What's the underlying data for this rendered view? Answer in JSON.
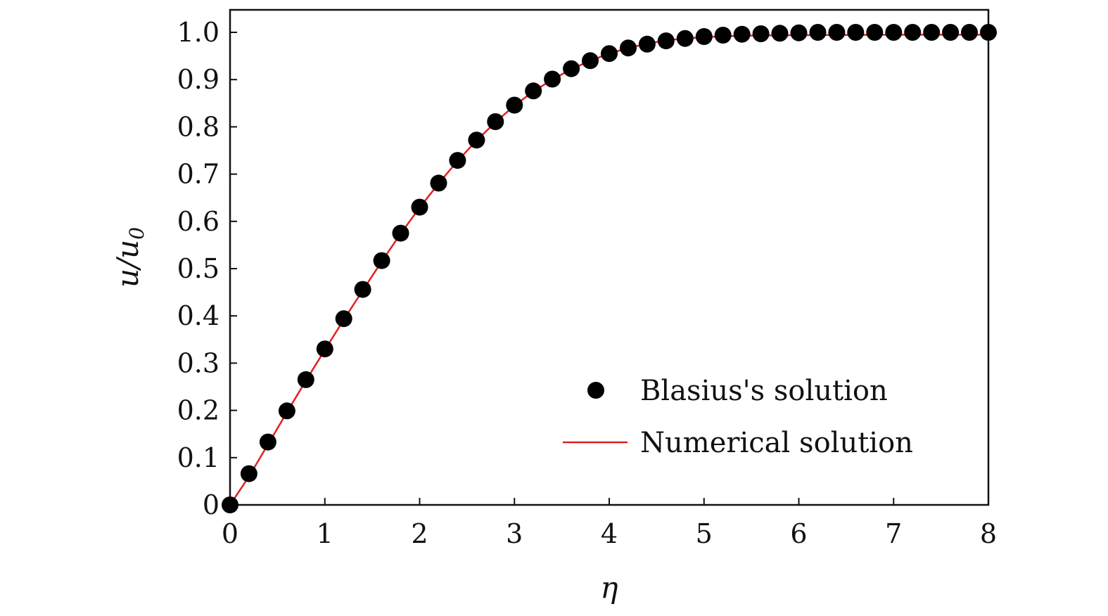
{
  "chart_data": {
    "type": "scatter",
    "xlabel": "η",
    "ylabel_main": "u/u",
    "ylabel_sub": "0",
    "xlim": [
      0,
      8
    ],
    "ylim": [
      0,
      1.0
    ],
    "x_ticks": [
      "0",
      "1",
      "2",
      "3",
      "4",
      "5",
      "6",
      "7",
      "8"
    ],
    "y_ticks": [
      "0",
      "0.1",
      "0.2",
      "0.3",
      "0.4",
      "0.5",
      "0.6",
      "0.7",
      "0.8",
      "0.9",
      "1.0"
    ],
    "grid": false,
    "legend_placement": "bottom-right",
    "series": [
      {
        "name": "Blasius's solution",
        "style": "markers",
        "color": "#000000",
        "x": [
          0,
          0.2,
          0.4,
          0.6,
          0.8,
          1.0,
          1.2,
          1.4,
          1.6,
          1.8,
          2.0,
          2.2,
          2.4,
          2.6,
          2.8,
          3.0,
          3.2,
          3.4,
          3.6,
          3.8,
          4.0,
          4.2,
          4.4,
          4.6,
          4.8,
          5.0,
          5.2,
          5.4,
          5.6,
          5.8,
          6.0,
          6.2,
          6.4,
          6.6,
          6.8,
          7.0,
          7.2,
          7.4,
          7.6,
          7.8,
          8.0
        ],
        "y": [
          0,
          0.066,
          0.133,
          0.199,
          0.265,
          0.33,
          0.394,
          0.456,
          0.517,
          0.575,
          0.63,
          0.681,
          0.729,
          0.772,
          0.811,
          0.846,
          0.876,
          0.901,
          0.923,
          0.94,
          0.955,
          0.967,
          0.975,
          0.982,
          0.987,
          0.991,
          0.994,
          0.996,
          0.997,
          0.998,
          0.999,
          1.0,
          1.0,
          1.0,
          1.0,
          1.0,
          1.0,
          1.0,
          1.0,
          1.0,
          1.0
        ]
      },
      {
        "name": "Numerical solution",
        "style": "line",
        "color": "#e02020",
        "x": [
          0,
          0.2,
          0.4,
          0.6,
          0.8,
          1.0,
          1.2,
          1.4,
          1.6,
          1.8,
          2.0,
          2.2,
          2.4,
          2.6,
          2.8,
          3.0,
          3.2,
          3.4,
          3.6,
          3.8,
          4.0,
          4.2,
          4.4,
          4.6,
          4.8,
          5.0,
          5.4,
          6.0,
          7.0,
          8.0
        ],
        "y": [
          0,
          0.06,
          0.128,
          0.196,
          0.263,
          0.328,
          0.392,
          0.454,
          0.515,
          0.574,
          0.629,
          0.68,
          0.728,
          0.771,
          0.81,
          0.845,
          0.875,
          0.9,
          0.922,
          0.94,
          0.955,
          0.967,
          0.976,
          0.983,
          0.987,
          0.99,
          0.993,
          0.994,
          0.995,
          0.995
        ]
      }
    ]
  }
}
